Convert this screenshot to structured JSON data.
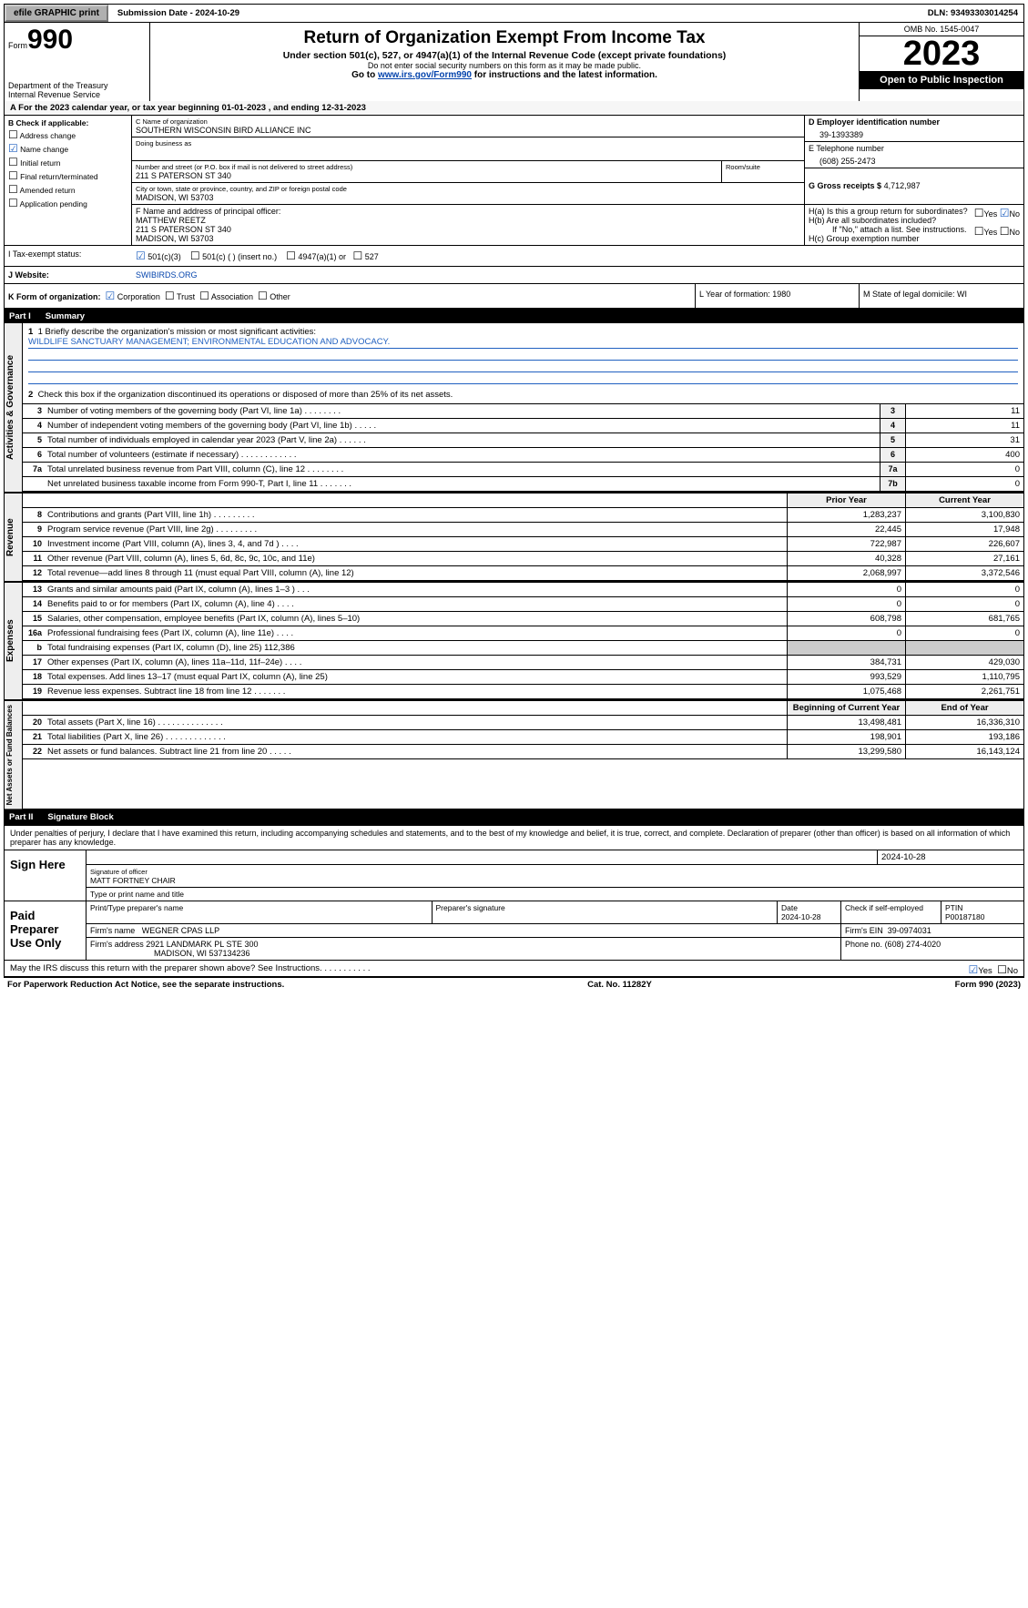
{
  "topbar": {
    "efile": "efile GRAPHIC print",
    "sub_label": "Submission Date - 2024-10-29",
    "dln": "DLN: 93493303014254"
  },
  "header": {
    "form_label": "Form",
    "form_num": "990",
    "dept": "Department of the Treasury\nInternal Revenue Service",
    "title": "Return of Organization Exempt From Income Tax",
    "sub1": "Under section 501(c), 527, or 4947(a)(1) of the Internal Revenue Code (except private foundations)",
    "sub2": "Do not enter social security numbers on this form as it may be made public.",
    "sub3_pre": "Go to ",
    "sub3_link": "www.irs.gov/Form990",
    "sub3_post": " for instructions and the latest information.",
    "omb": "OMB No. 1545-0047",
    "year": "2023",
    "open": "Open to Public Inspection"
  },
  "line_a": "A For the 2023 calendar year, or tax year beginning 01-01-2023    , and ending 12-31-2023",
  "box_b": {
    "label": "B Check if applicable:",
    "items": [
      {
        "checked": false,
        "label": "Address change"
      },
      {
        "checked": true,
        "label": "Name change"
      },
      {
        "checked": false,
        "label": "Initial return"
      },
      {
        "checked": false,
        "label": "Final return/terminated"
      },
      {
        "checked": false,
        "label": "Amended return"
      },
      {
        "checked": false,
        "label": "Application pending"
      }
    ]
  },
  "box_c": {
    "name_label": "C Name of organization",
    "name": "SOUTHERN WISCONSIN BIRD ALLIANCE INC",
    "dba_label": "Doing business as",
    "addr_label": "Number and street (or P.O. box if mail is not delivered to street address)",
    "room_label": "Room/suite",
    "addr": "211 S PATERSON ST 340",
    "city_label": "City or town, state or province, country, and ZIP or foreign postal code",
    "city": "MADISON, WI  53703"
  },
  "box_d": {
    "label": "D Employer identification number",
    "value": "39-1393389"
  },
  "box_e": {
    "label": "E Telephone number",
    "value": "(608) 255-2473"
  },
  "box_g": {
    "label": "G Gross receipts $",
    "value": "4,712,987"
  },
  "box_f": {
    "label": "F  Name and address of principal officer:",
    "name": "MATTHEW REETZ",
    "addr": "211 S PATERSON ST 340",
    "city": "MADISON, WI  53703"
  },
  "box_h": {
    "a": "H(a)  Is this a group return for subordinates?",
    "a_yes": false,
    "a_no": true,
    "b": "H(b)  Are all subordinates included?",
    "b_note": "If \"No,\" attach a list. See instructions.",
    "c": "H(c)  Group exemption number"
  },
  "tax_status": {
    "label": "I  Tax-exempt status:",
    "c3": true,
    "c3_label": "501(c)(3)",
    "c_other": "501(c) (  ) (insert no.)",
    "a1": "4947(a)(1) or",
    "s527": "527"
  },
  "website": {
    "label": "J  Website:",
    "value": "SWIBIRDS.ORG"
  },
  "k_row": {
    "k": "K Form of organization:",
    "corp": true,
    "corp_l": "Corporation",
    "trust_l": "Trust",
    "assoc_l": "Association",
    "other_l": "Other",
    "l": "L Year of formation: 1980",
    "m": "M State of legal domicile: WI"
  },
  "part1": {
    "title": "Part I",
    "name": "Summary",
    "mission_label": "1   Briefly describe the organization's mission or most significant activities:",
    "mission": "WILDLIFE SANCTUARY MANAGEMENT; ENVIRONMENTAL EDUCATION AND ADVOCACY.",
    "line2": "Check this box      if the organization discontinued its operations or disposed of more than 25% of its net assets.",
    "vtabs": {
      "ag": "Activities & Governance",
      "rev": "Revenue",
      "exp": "Expenses",
      "net": "Net Assets or Fund Balances"
    },
    "rows_gov": [
      {
        "n": "3",
        "d": "Number of voting members of the governing body (Part VI, line 1a)    .    .    .    .    .    .    .    .",
        "c": "3",
        "v": "11"
      },
      {
        "n": "4",
        "d": "Number of independent voting members of the governing body (Part VI, line 1b)    .    .    .    .    .",
        "c": "4",
        "v": "11"
      },
      {
        "n": "5",
        "d": "Total number of individuals employed in calendar year 2023 (Part V, line 2a)    .    .    .    .    .    .",
        "c": "5",
        "v": "31"
      },
      {
        "n": "6",
        "d": "Total number of volunteers (estimate if necessary)    .    .    .    .    .    .    .    .    .    .    .    .",
        "c": "6",
        "v": "400"
      },
      {
        "n": "7a",
        "d": "Total unrelated business revenue from Part VIII, column (C), line 12    .    .    .    .    .    .    .    .",
        "c": "7a",
        "v": "0"
      },
      {
        "n": "",
        "d": "Net unrelated business taxable income from Form 990-T, Part I, line 11    .    .    .    .    .    .    .",
        "c": "7b",
        "v": "0"
      }
    ],
    "col_hdr": {
      "prior": "Prior Year",
      "current": "Current Year"
    },
    "rows_rev": [
      {
        "n": "8",
        "d": "Contributions and grants (Part VIII, line 1h)    .    .    .    .    .    .    .    .    .",
        "p": "1,283,237",
        "v": "3,100,830"
      },
      {
        "n": "9",
        "d": "Program service revenue (Part VIII, line 2g)    .    .    .    .    .    .    .    .    .",
        "p": "22,445",
        "v": "17,948"
      },
      {
        "n": "10",
        "d": "Investment income (Part VIII, column (A), lines 3, 4, and 7d )    .    .    .    .",
        "p": "722,987",
        "v": "226,607"
      },
      {
        "n": "11",
        "d": "Other revenue (Part VIII, column (A), lines 5, 6d, 8c, 9c, 10c, and 11e)",
        "p": "40,328",
        "v": "27,161"
      },
      {
        "n": "12",
        "d": "Total revenue—add lines 8 through 11 (must equal Part VIII, column (A), line 12)",
        "p": "2,068,997",
        "v": "3,372,546"
      }
    ],
    "rows_exp": [
      {
        "n": "13",
        "d": "Grants and similar amounts paid (Part IX, column (A), lines 1–3 )    .    .    .",
        "p": "0",
        "v": "0"
      },
      {
        "n": "14",
        "d": "Benefits paid to or for members (Part IX, column (A), line 4)    .    .    .    .",
        "p": "0",
        "v": "0"
      },
      {
        "n": "15",
        "d": "Salaries, other compensation, employee benefits (Part IX, column (A), lines 5–10)",
        "p": "608,798",
        "v": "681,765"
      },
      {
        "n": "16a",
        "d": "Professional fundraising fees (Part IX, column (A), line 11e)    .    .    .    .",
        "p": "0",
        "v": "0"
      },
      {
        "n": "b",
        "d": "Total fundraising expenses (Part IX, column (D), line 25) 112,386",
        "p": "",
        "v": "",
        "shaded": true
      },
      {
        "n": "17",
        "d": "Other expenses (Part IX, column (A), lines 11a–11d, 11f–24e)    .    .    .    .",
        "p": "384,731",
        "v": "429,030"
      },
      {
        "n": "18",
        "d": "Total expenses. Add lines 13–17 (must equal Part IX, column (A), line 25)",
        "p": "993,529",
        "v": "1,110,795"
      },
      {
        "n": "19",
        "d": "Revenue less expenses. Subtract line 18 from line 12    .    .    .    .    .    .    .",
        "p": "1,075,468",
        "v": "2,261,751"
      }
    ],
    "col_hdr2": {
      "prior": "Beginning of Current Year",
      "current": "End of Year"
    },
    "rows_net": [
      {
        "n": "20",
        "d": "Total assets (Part X, line 16)    .    .    .    .    .    .    .    .    .    .    .    .    .    .",
        "p": "13,498,481",
        "v": "16,336,310"
      },
      {
        "n": "21",
        "d": "Total liabilities (Part X, line 26)    .    .    .    .    .    .    .    .    .    .    .    .    .",
        "p": "198,901",
        "v": "193,186"
      },
      {
        "n": "22",
        "d": "Net assets or fund balances. Subtract line 21 from line 20    .    .    .    .    .",
        "p": "13,299,580",
        "v": "16,143,124"
      }
    ]
  },
  "part2": {
    "title": "Part II",
    "name": "Signature Block",
    "decl": "Under penalties of perjury, I declare that I have examined this return, including accompanying schedules and statements, and to the best of my knowledge and belief, it is true, correct, and complete. Declaration of preparer (other than officer) is based on all information of which preparer has any knowledge.",
    "sign_here": "Sign Here",
    "sig_officer": "Signature of officer",
    "officer_name": "MATT FORTNEY  CHAIR",
    "type_name": "Type or print name and title",
    "date1": "2024-10-28",
    "paid": "Paid Preparer Use Only",
    "prep_name_l": "Print/Type preparer's name",
    "prep_sig_l": "Preparer's signature",
    "date_l": "Date",
    "date2": "2024-10-28",
    "self_emp": "Check      if self-employed",
    "ptin_l": "PTIN",
    "ptin": "P00187180",
    "firm_name_l": "Firm's name",
    "firm_name": "WEGNER CPAS LLP",
    "firm_ein_l": "Firm's EIN",
    "firm_ein": "39-0974031",
    "firm_addr_l": "Firm's address",
    "firm_addr": "2921 LANDMARK PL STE 300",
    "firm_city": "MADISON, WI  537134236",
    "phone_l": "Phone no.",
    "phone": "(608) 274-4020",
    "discuss": "May the IRS discuss this return with the preparer shown above? See Instructions.    .    .    .    .    .    .    .    .    .    .",
    "discuss_yes": true
  },
  "footer": {
    "left": "For Paperwork Reduction Act Notice, see the separate instructions.",
    "mid": "Cat. No. 11282Y",
    "right": "Form 990 (2023)"
  },
  "colors": {
    "link": "#0645ad",
    "check": "#2060c0",
    "header_bg": "#000000",
    "shade": "#cccccc"
  }
}
